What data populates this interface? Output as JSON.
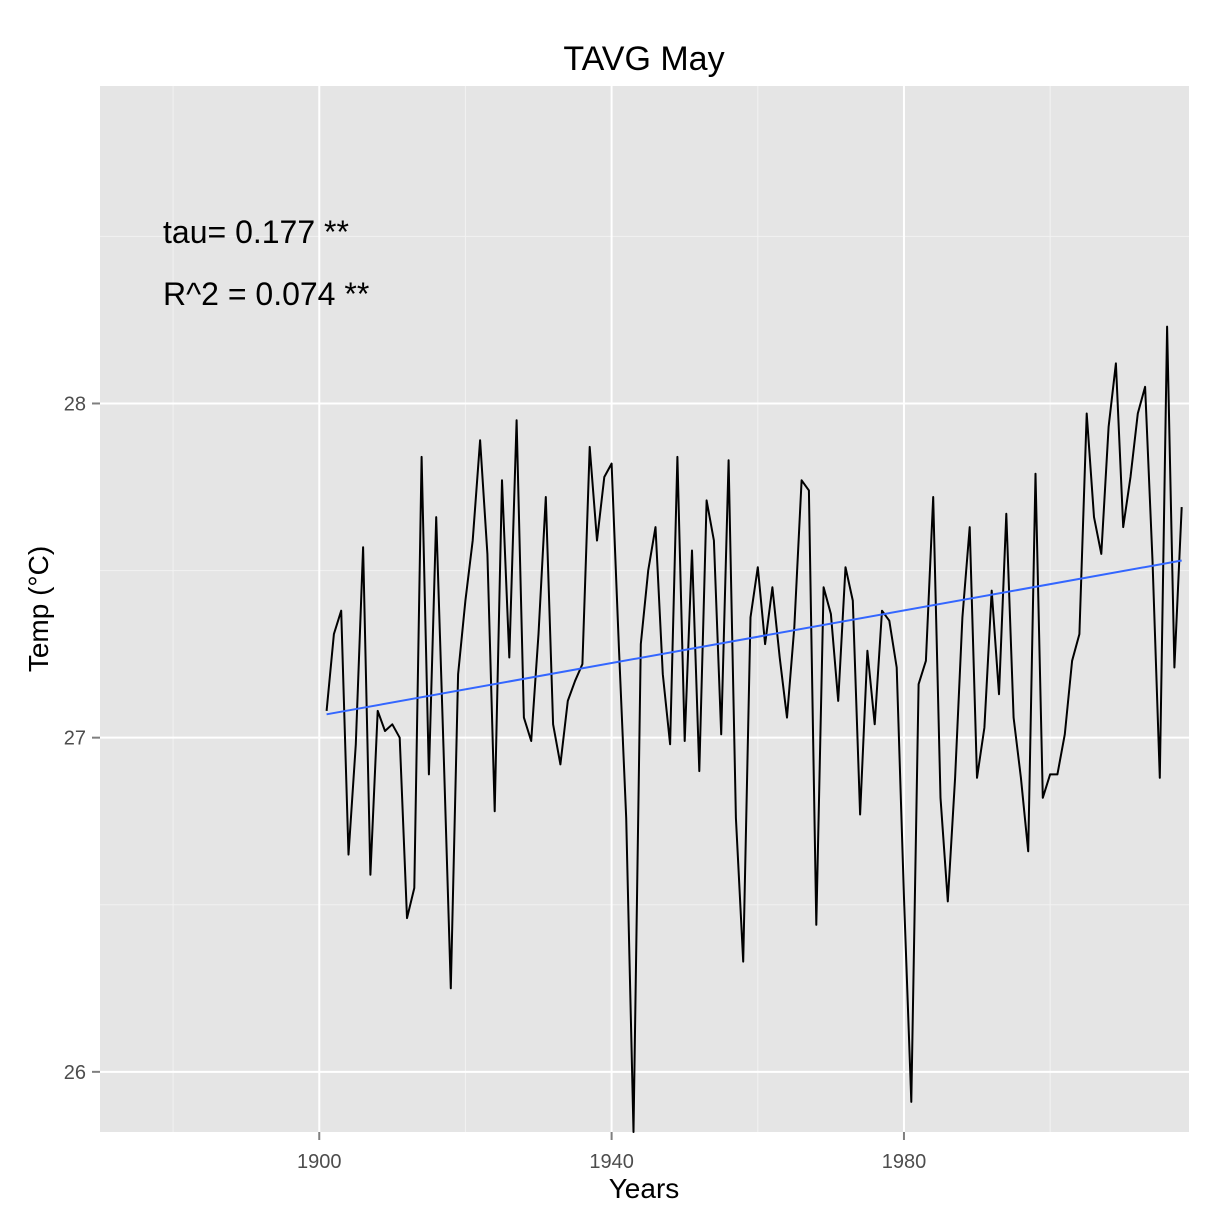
{
  "chart_data": {
    "type": "line",
    "title": "TAVG May",
    "xlabel": "Years",
    "ylabel": "Temp (°C)",
    "xlim": [
      1870,
      2019
    ],
    "ylim": [
      25.82,
      28.95
    ],
    "x_ticks": [
      1900,
      1940,
      1980
    ],
    "y_ticks": [
      26,
      27,
      28
    ],
    "grid": true,
    "legend": "none",
    "annotations": [
      "tau= 0.177 **",
      "R^2 =  0.074 **"
    ],
    "series": [
      {
        "color": "#000000",
        "x": [
          1901,
          1902,
          1903,
          1904,
          1905,
          1906,
          1907,
          1908,
          1909,
          1910,
          1911,
          1912,
          1913,
          1914,
          1915,
          1916,
          1917,
          1918,
          1919,
          1920,
          1921,
          1922,
          1923,
          1924,
          1925,
          1926,
          1927,
          1928,
          1929,
          1930,
          1931,
          1932,
          1933,
          1934,
          1935,
          1936,
          1937,
          1938,
          1939,
          1940,
          1941,
          1942,
          1943,
          1944,
          1945,
          1946,
          1947,
          1948,
          1949,
          1950,
          1951,
          1952,
          1953,
          1954,
          1955,
          1956,
          1957,
          1958,
          1959,
          1960,
          1961,
          1962,
          1963,
          1964,
          1965,
          1966,
          1967,
          1968,
          1969,
          1970,
          1971,
          1972,
          1973,
          1974,
          1975,
          1976,
          1977,
          1978,
          1979,
          1980,
          1981,
          1982,
          1983,
          1984,
          1985,
          1986,
          1987,
          1988,
          1989,
          1990,
          1991,
          1992,
          1993,
          1994,
          1995,
          1996,
          1997,
          1998,
          1999,
          2000,
          2001,
          2002,
          2003,
          2004,
          2005,
          2006,
          2007,
          2008,
          2009,
          2010,
          2011,
          2012,
          2013,
          2014,
          2015,
          2016,
          2017,
          2018
        ],
        "y": [
          27.08,
          27.31,
          27.38,
          26.65,
          26.98,
          27.57,
          26.59,
          27.08,
          27.02,
          27.04,
          27.0,
          26.46,
          26.55,
          27.84,
          26.89,
          27.66,
          26.97,
          26.25,
          27.19,
          27.41,
          27.59,
          27.89,
          27.55,
          26.78,
          27.77,
          27.24,
          27.95,
          27.06,
          26.99,
          27.31,
          27.72,
          27.04,
          26.92,
          27.11,
          27.17,
          27.22,
          27.87,
          27.59,
          27.78,
          27.82,
          27.27,
          26.76,
          25.82,
          27.28,
          27.5,
          27.63,
          27.19,
          26.98,
          27.84,
          26.99,
          27.56,
          26.9,
          27.71,
          27.59,
          27.01,
          27.83,
          26.76,
          26.33,
          27.36,
          27.51,
          27.28,
          27.45,
          27.24,
          27.06,
          27.33,
          27.77,
          27.74,
          26.44,
          27.45,
          27.37,
          27.11,
          27.51,
          27.41,
          26.77,
          27.26,
          27.04,
          27.38,
          27.35,
          27.21,
          26.52,
          25.91,
          27.16,
          27.23,
          27.72,
          26.82,
          26.51,
          26.88,
          27.36,
          27.63,
          26.88,
          27.03,
          27.44,
          27.13,
          27.67,
          27.06,
          26.88,
          26.66,
          27.79,
          26.82,
          26.89,
          26.89,
          27.01,
          27.23,
          27.31,
          27.97,
          27.66,
          27.55,
          27.93,
          28.12,
          27.63,
          27.78,
          27.97,
          28.05,
          27.53,
          26.88,
          28.23,
          27.21,
          27.69
        ]
      },
      {
        "color": "#3366ff",
        "x": [
          1901,
          2018
        ],
        "y": [
          27.07,
          27.53
        ]
      }
    ]
  }
}
